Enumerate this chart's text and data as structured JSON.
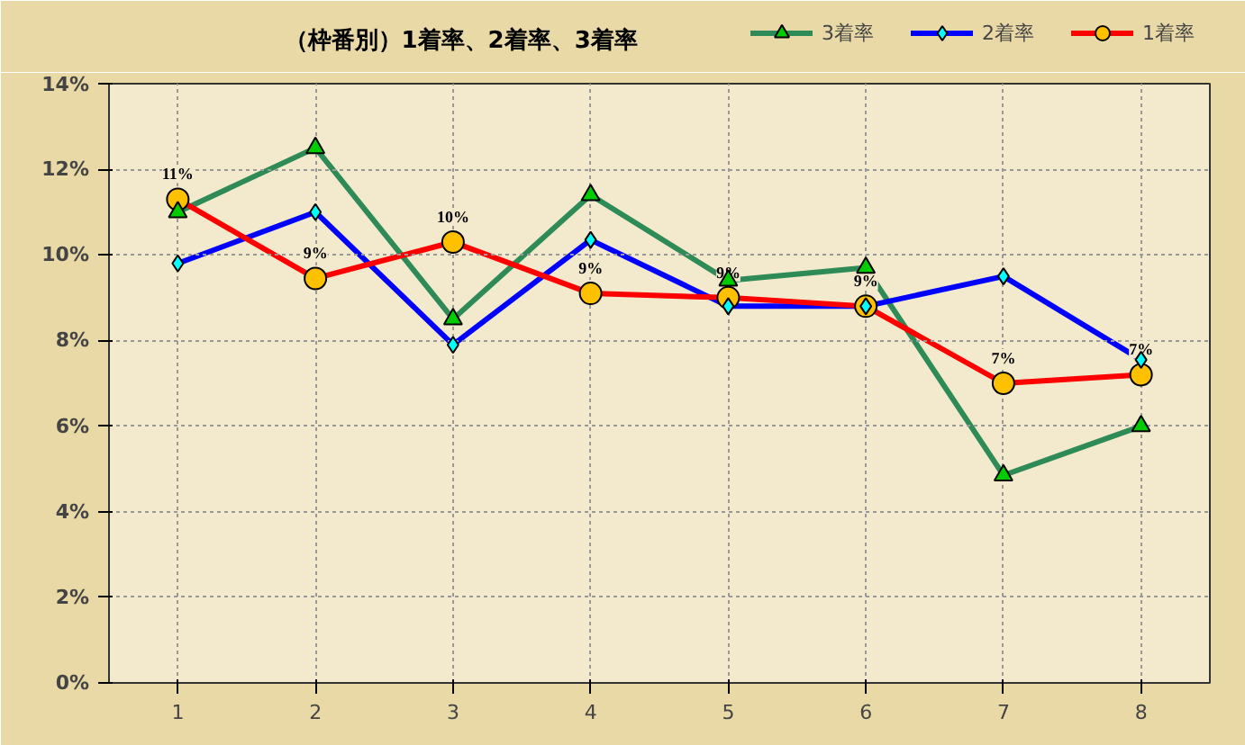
{
  "chart_data": {
    "type": "line",
    "title": "（枠番別）1着率、2着率、3着率",
    "categories": [
      "1",
      "2",
      "3",
      "4",
      "5",
      "6",
      "7",
      "8"
    ],
    "series": [
      {
        "name": "3着率",
        "color": "#2e8b57",
        "marker": "triangle",
        "values": [
          11.0,
          12.5,
          8.5,
          11.4,
          9.4,
          9.7,
          4.85,
          6.0
        ]
      },
      {
        "name": "2着率",
        "color": "#0000ff",
        "marker": "diamond",
        "values": [
          9.8,
          11.0,
          7.9,
          10.35,
          8.8,
          8.8,
          9.5,
          7.55
        ]
      },
      {
        "name": "1着率",
        "color": "#ff0000",
        "marker": "circle",
        "values": [
          11.3,
          9.45,
          10.3,
          9.1,
          9.0,
          8.8,
          7.0,
          7.2
        ],
        "value_labels": [
          "11%",
          "9%",
          "10%",
          "9%",
          "9%",
          "9%",
          "7%",
          "7%"
        ]
      }
    ],
    "ylim": [
      0,
      14
    ],
    "yticks": [
      {
        "value": 0,
        "label": "0%"
      },
      {
        "value": 2,
        "label": "2%"
      },
      {
        "value": 4,
        "label": "4%"
      },
      {
        "value": 6,
        "label": "6%"
      },
      {
        "value": 8,
        "label": "8%"
      },
      {
        "value": 10,
        "label": "10%"
      },
      {
        "value": 12,
        "label": "12%"
      },
      {
        "value": 14,
        "label": "14%"
      }
    ],
    "grid": true,
    "legend": "top right",
    "line_style": "solid"
  }
}
